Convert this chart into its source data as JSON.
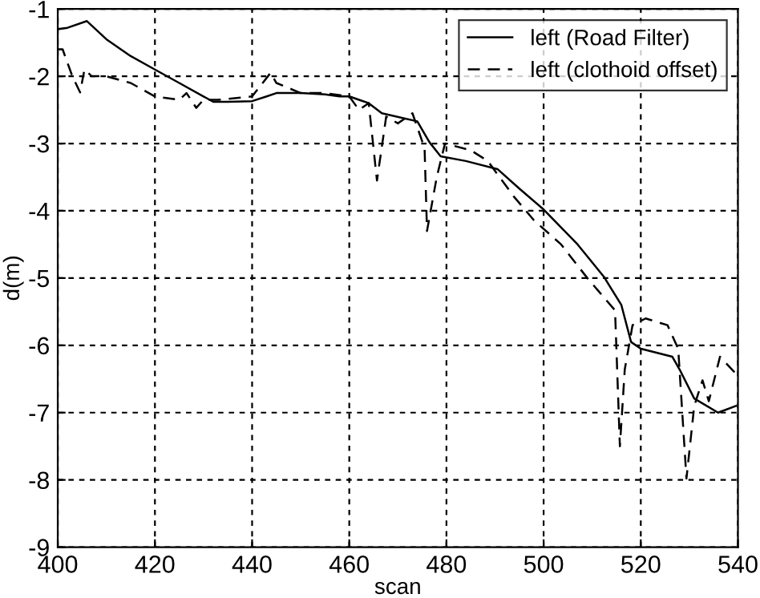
{
  "chart_data": {
    "type": "line",
    "xlabel": "scan",
    "ylabel": "d(m)",
    "xlim": [
      400,
      540
    ],
    "ylim": [
      -9,
      -1
    ],
    "xticks": [
      400,
      420,
      440,
      460,
      480,
      500,
      520,
      540
    ],
    "yticks": [
      -9,
      -8,
      -7,
      -6,
      -5,
      -4,
      -3,
      -2,
      -1
    ],
    "grid": true,
    "legend": "top right",
    "marker": "none",
    "series": [
      {
        "name": "left (Road Filter)",
        "color": "#000000",
        "line_style": "solid",
        "x": [
          400,
          402,
          406,
          410,
          415,
          420,
          425,
          430,
          432,
          435,
          440,
          443,
          445,
          450,
          455,
          458,
          460,
          462,
          464,
          466.7,
          474,
          476.5,
          478.8,
          484,
          490.5,
          495,
          500,
          507,
          512.4,
          516,
          518,
          520,
          526.5,
          528,
          531,
          535.9,
          539.6
        ],
        "values": [
          -1.3,
          -1.28,
          -1.18,
          -1.45,
          -1.7,
          -1.9,
          -2.1,
          -2.3,
          -2.38,
          -2.38,
          -2.37,
          -2.3,
          -2.25,
          -2.25,
          -2.27,
          -2.3,
          -2.3,
          -2.35,
          -2.4,
          -2.55,
          -2.67,
          -2.98,
          -3.19,
          -3.26,
          -3.38,
          -3.67,
          -3.98,
          -4.5,
          -4.98,
          -5.4,
          -5.95,
          -6.05,
          -6.17,
          -6.36,
          -6.79,
          -7.0,
          -6.9
        ]
      },
      {
        "name": "left (clothoid offset)",
        "color": "#000000",
        "line_style": "dashed",
        "x": [
          400,
          401,
          403,
          404.6,
          405.5,
          407,
          410,
          415,
          420,
          425,
          426.5,
          428.5,
          430,
          433,
          440,
          443.8,
          445,
          450,
          455,
          460,
          462,
          464,
          465.7,
          467.6,
          470,
          473,
          475.5,
          476,
          478,
          479.7,
          485,
          488.5,
          494,
          498,
          503.6,
          509,
          514.7,
          515.7,
          516.7,
          518.3,
          521,
          525.5,
          527.7,
          529.4,
          531,
          532.7,
          534,
          536.3,
          539.7
        ],
        "values": [
          -1.6,
          -1.6,
          -2.0,
          -2.24,
          -1.9,
          -2.0,
          -2.0,
          -2.1,
          -2.3,
          -2.35,
          -2.25,
          -2.47,
          -2.35,
          -2.35,
          -2.3,
          -1.95,
          -2.1,
          -2.25,
          -2.25,
          -2.3,
          -2.5,
          -2.4,
          -3.55,
          -2.6,
          -2.7,
          -2.55,
          -3.07,
          -4.3,
          -3.5,
          -3.0,
          -3.1,
          -3.26,
          -3.8,
          -4.14,
          -4.5,
          -5.0,
          -5.48,
          -7.5,
          -6.36,
          -5.7,
          -5.6,
          -5.7,
          -6.05,
          -7.98,
          -6.9,
          -6.52,
          -6.83,
          -6.17,
          -6.43
        ]
      }
    ]
  }
}
